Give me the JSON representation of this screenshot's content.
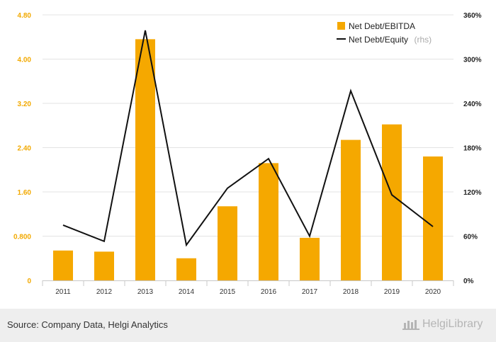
{
  "chart_data": {
    "type": "bar",
    "categories": [
      "2011",
      "2012",
      "2013",
      "2014",
      "2015",
      "2016",
      "2017",
      "2018",
      "2019",
      "2020"
    ],
    "series": [
      {
        "name": "Net Debt/EBITDA",
        "type": "bar",
        "axis": "left",
        "color": "#f5a800",
        "values": [
          0.54,
          0.52,
          4.36,
          0.4,
          1.34,
          2.12,
          0.77,
          2.54,
          2.82,
          2.24
        ]
      },
      {
        "name": "Net Debt/Equity",
        "name_suffix": "(rhs)",
        "type": "line",
        "axis": "right",
        "color": "#111111",
        "values": [
          75,
          53,
          339,
          48,
          125,
          165,
          60,
          257,
          116,
          73
        ]
      }
    ],
    "y_left": {
      "ticks": [
        0,
        0.8,
        1.6,
        2.4,
        3.2,
        4.0,
        4.8
      ],
      "tick_labels": [
        "0",
        "0.800",
        "1.60",
        "2.40",
        "3.20",
        "4.00",
        "4.80"
      ],
      "range": [
        0,
        4.8
      ]
    },
    "y_right": {
      "ticks": [
        0,
        60,
        120,
        180,
        240,
        300,
        360
      ],
      "tick_labels": [
        "0%",
        "60%",
        "120%",
        "180%",
        "240%",
        "300%",
        "360%"
      ],
      "range": [
        0,
        360
      ]
    },
    "grid": true,
    "legend_position": "top-right"
  },
  "footer": {
    "source": "Source: Company Data, Helgi Analytics",
    "brand": "HelgiLibrary"
  }
}
